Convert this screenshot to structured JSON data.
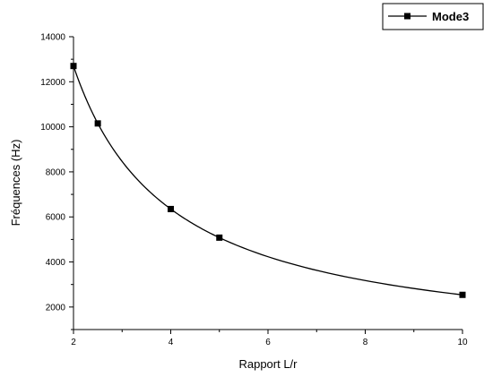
{
  "chart_data": {
    "type": "line",
    "title": "",
    "xlabel": "Rapport L/r",
    "ylabel": "Fréquences (Hz)",
    "xlim": [
      2,
      10
    ],
    "ylim": [
      1000,
      14000
    ],
    "x_ticks": [
      2,
      4,
      6,
      8,
      10
    ],
    "y_ticks": [
      2000,
      4000,
      6000,
      8000,
      10000,
      12000,
      14000
    ],
    "x_tick_labels": [
      "2",
      "4",
      "6",
      "8",
      "10"
    ],
    "y_tick_labels": [
      "2000",
      "4000",
      "6000",
      "8000",
      "10000",
      "12000",
      "14000"
    ],
    "grid": false,
    "legend_position": "top-right",
    "series": [
      {
        "name": "Mode3",
        "marker": "square",
        "color": "#000000",
        "x": [
          2,
          2.5,
          4,
          5,
          10
        ],
        "y": [
          12700,
          10150,
          6350,
          5080,
          2540
        ]
      }
    ]
  }
}
